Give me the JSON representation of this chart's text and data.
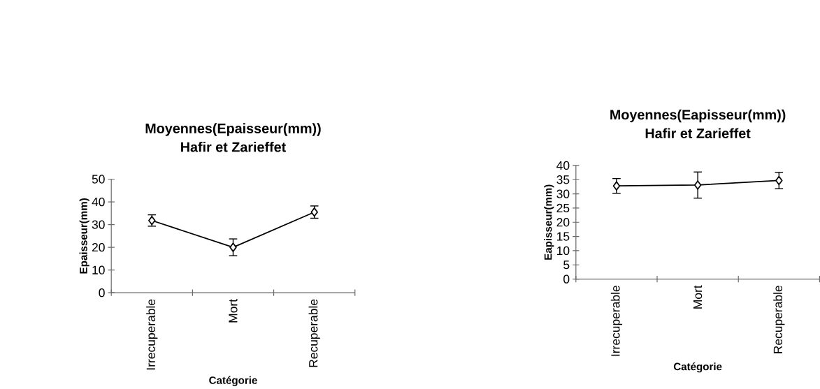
{
  "chart_data": [
    {
      "type": "line",
      "title": "Moyennes(Epaisseur(mm))",
      "subtitle": "Hafir et Zarieffet",
      "xlabel": "Catégorie",
      "ylabel": "Epaisseur(mm)",
      "categories": [
        "Irrecuperable",
        "Mort",
        "Recuperable"
      ],
      "values": [
        31.8,
        20.0,
        35.5
      ],
      "errors": [
        2.5,
        3.7,
        2.7
      ],
      "color": "#000000",
      "marker": "diamond",
      "ylim": [
        0,
        50
      ],
      "yticks": [
        0,
        10,
        20,
        30,
        40,
        50
      ]
    },
    {
      "type": "line",
      "title": "Moyennes(Eapisseur(mm))",
      "subtitle": "Hafir et Zarieffet",
      "xlabel": "Catégorie",
      "ylabel": "Eapisseur(mm)",
      "categories": [
        "Irrecuperable",
        "Mort",
        "Recuperable"
      ],
      "values": [
        32.8,
        33.1,
        34.7
      ],
      "errors": [
        2.6,
        4.6,
        2.9
      ],
      "color": "#000000",
      "marker": "diamond",
      "ylim": [
        0,
        40
      ],
      "yticks": [
        0,
        5,
        10,
        15,
        20,
        25,
        30,
        35,
        40
      ]
    }
  ]
}
